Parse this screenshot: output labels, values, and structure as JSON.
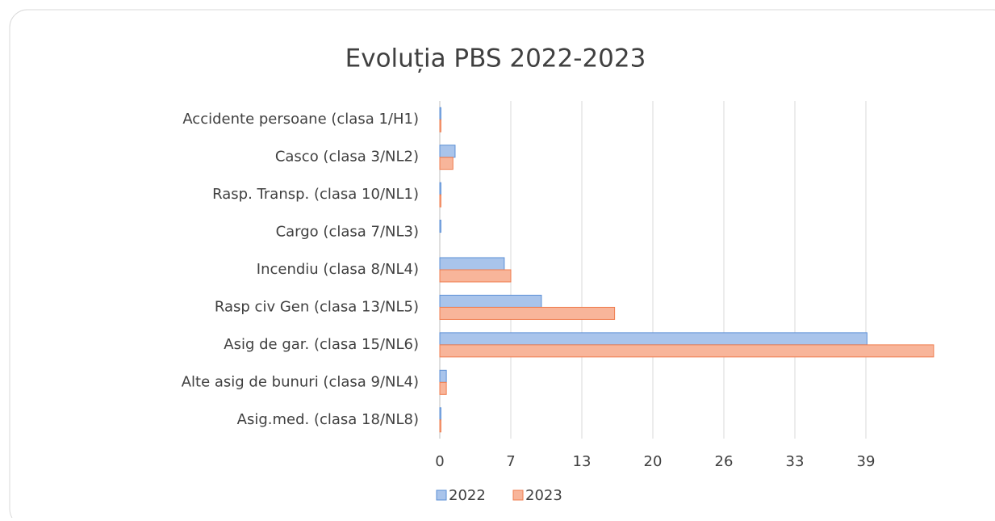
{
  "chart_data": {
    "type": "bar",
    "orientation": "horizontal",
    "title": "Evoluția  PBS 2022-2023",
    "categories": [
      "Accidente persoane (clasa 1/H1)",
      "Casco (clasa 3/NL2)",
      "Rasp. Transp. (clasa 10/NL1)",
      "Cargo (clasa 7/NL3)",
      "Incendiu (clasa 8/NL4)",
      "Rasp civ Gen (clasa 13/NL5) ",
      "Asig de gar. (clasa 15/NL6)",
      "Alte asig de bunuri (clasa 9/NL4)",
      "Asig.med. (clasa 18/NL8)"
    ],
    "series": [
      {
        "name": "2022",
        "color": "#a9c4eb",
        "values": [
          0.1,
          1.4,
          0.1,
          0.1,
          5.9,
          9.3,
          39.1,
          0.6,
          0.1
        ]
      },
      {
        "name": "2023",
        "color": "#f8b59a",
        "values": [
          0.1,
          1.2,
          0.1,
          0,
          6.5,
          16.0,
          45.2,
          0.6,
          0.1
        ]
      }
    ],
    "xlim": [
      0,
      45.5
    ],
    "xticks": [
      0,
      {
        "value": 6.5,
        "label": "7"
      },
      13,
      {
        "value": 19.5,
        "label": "20"
      },
      26,
      {
        "value": 32.5,
        "label": "33"
      },
      39
    ],
    "grid": true,
    "legend": "bottom"
  }
}
